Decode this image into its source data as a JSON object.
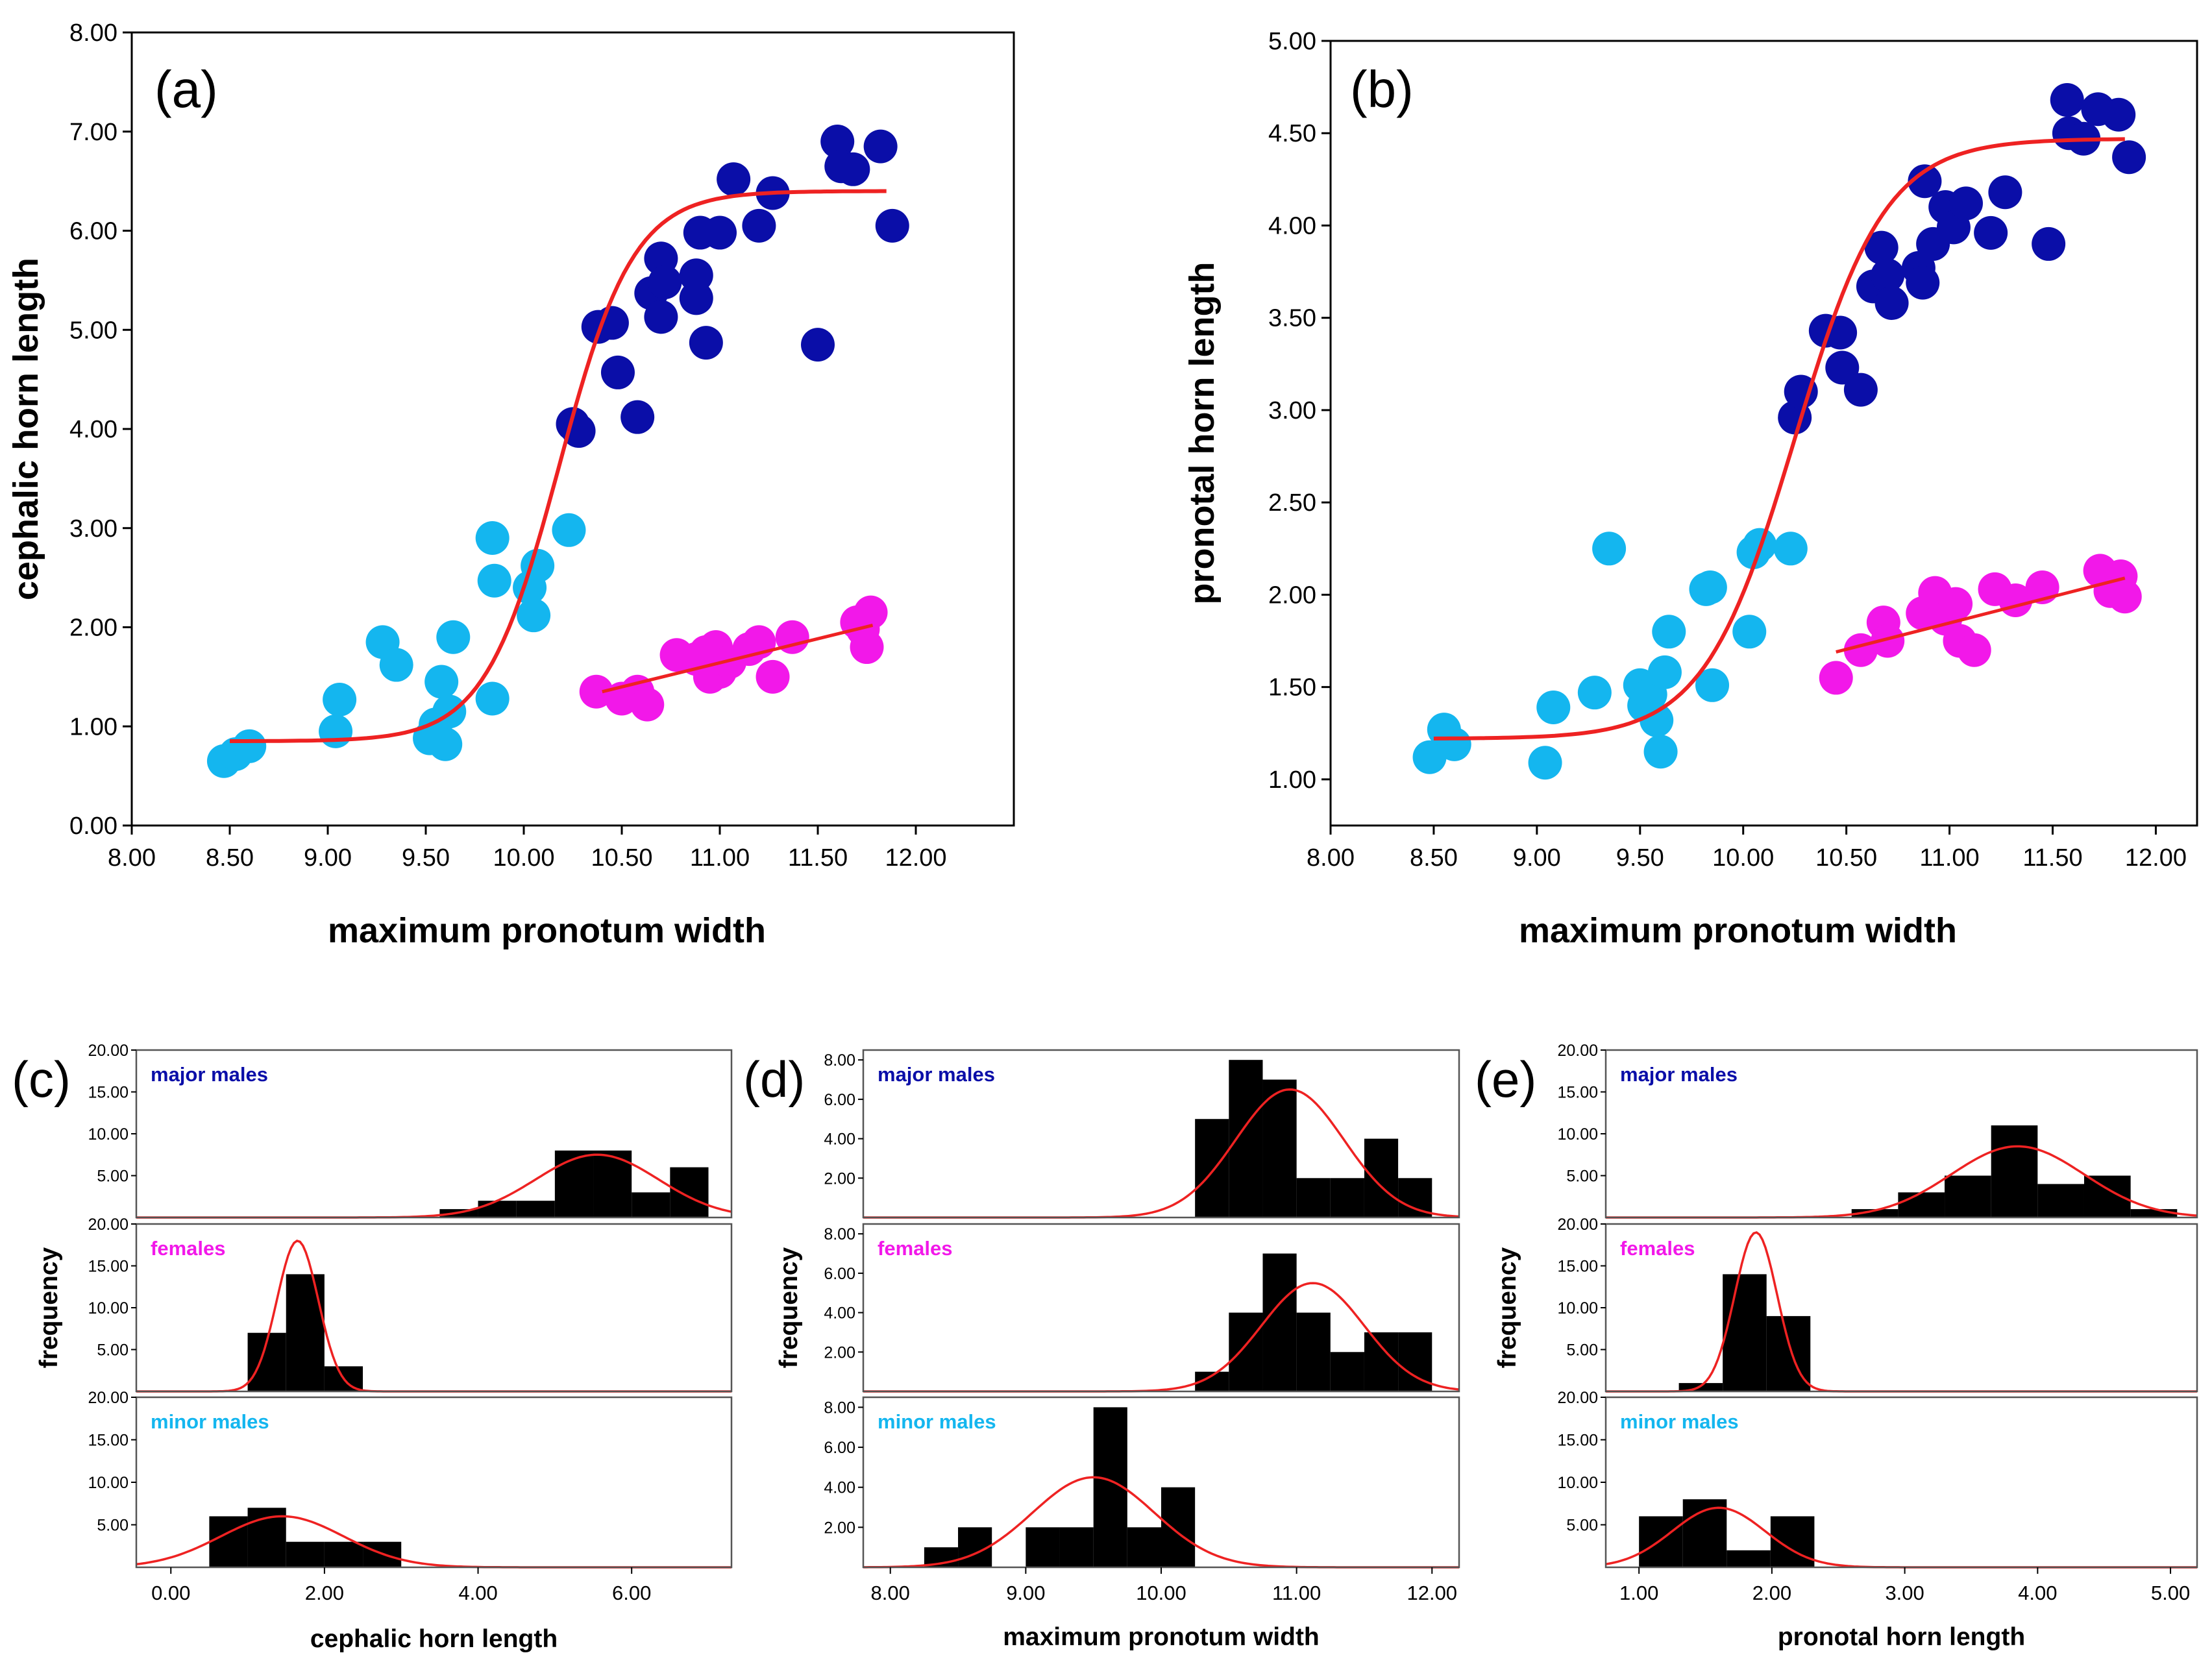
{
  "colors": {
    "major": "#0a0ea8",
    "female": "#f218e9",
    "minor": "#14b6ef",
    "curve": "#ee2222",
    "bar": "#000000",
    "axis": "#000000"
  },
  "chart_data": [
    {
      "id": "a",
      "type": "scatter",
      "panel_label": "(a)",
      "xlabel": "maximum pronotum width",
      "ylabel": "cephalic horn length",
      "xlim": [
        8.0,
        12.5
      ],
      "ylim": [
        0.0,
        8.0
      ],
      "xticks": [
        "8.00",
        "8.50",
        "9.00",
        "9.50",
        "10.00",
        "10.50",
        "11.00",
        "11.50",
        "12.00"
      ],
      "yticks": [
        "0.00",
        "1.00",
        "2.00",
        "3.00",
        "4.00",
        "5.00",
        "6.00",
        "7.00",
        "8.00"
      ],
      "series": [
        {
          "name": "minor males",
          "color_key": "minor",
          "points": [
            [
              8.47,
              0.65
            ],
            [
              8.53,
              0.72
            ],
            [
              8.6,
              0.8
            ],
            [
              9.04,
              0.95
            ],
            [
              9.06,
              1.27
            ],
            [
              9.28,
              1.85
            ],
            [
              9.35,
              1.62
            ],
            [
              9.52,
              0.88
            ],
            [
              9.55,
              1.02
            ],
            [
              9.58,
              1.45
            ],
            [
              9.6,
              0.82
            ],
            [
              9.62,
              1.15
            ],
            [
              9.64,
              1.9
            ],
            [
              9.84,
              1.28
            ],
            [
              9.84,
              2.9
            ],
            [
              9.85,
              2.47
            ],
            [
              10.03,
              2.4
            ],
            [
              10.05,
              2.12
            ],
            [
              10.07,
              2.62
            ],
            [
              10.23,
              2.98
            ]
          ]
        },
        {
          "name": "major males",
          "color_key": "major",
          "points": [
            [
              10.25,
              4.05
            ],
            [
              10.28,
              3.98
            ],
            [
              10.38,
              5.03
            ],
            [
              10.45,
              5.07
            ],
            [
              10.48,
              4.57
            ],
            [
              10.58,
              4.12
            ],
            [
              10.65,
              5.37
            ],
            [
              10.7,
              5.72
            ],
            [
              10.7,
              5.13
            ],
            [
              10.72,
              5.48
            ],
            [
              10.88,
              5.32
            ],
            [
              10.88,
              5.55
            ],
            [
              10.9,
              5.98
            ],
            [
              10.93,
              4.87
            ],
            [
              11.0,
              5.98
            ],
            [
              11.07,
              6.52
            ],
            [
              11.2,
              6.05
            ],
            [
              11.27,
              6.38
            ],
            [
              11.5,
              4.85
            ],
            [
              11.6,
              6.9
            ],
            [
              11.62,
              6.65
            ],
            [
              11.68,
              6.62
            ],
            [
              11.82,
              6.85
            ],
            [
              11.88,
              6.05
            ]
          ]
        },
        {
          "name": "females",
          "color_key": "female",
          "points": [
            [
              10.37,
              1.35
            ],
            [
              10.5,
              1.28
            ],
            [
              10.58,
              1.35
            ],
            [
              10.63,
              1.22
            ],
            [
              10.78,
              1.72
            ],
            [
              10.88,
              1.68
            ],
            [
              10.93,
              1.75
            ],
            [
              10.95,
              1.5
            ],
            [
              10.98,
              1.8
            ],
            [
              11.0,
              1.55
            ],
            [
              11.05,
              1.65
            ],
            [
              11.15,
              1.78
            ],
            [
              11.2,
              1.85
            ],
            [
              11.27,
              1.5
            ],
            [
              11.37,
              1.9
            ],
            [
              11.7,
              2.05
            ],
            [
              11.73,
              1.98
            ],
            [
              11.75,
              1.8
            ],
            [
              11.77,
              2.15
            ]
          ]
        }
      ],
      "fit_sigmoid": [
        0.85,
        5.55,
        10.18,
        0.19,
        8.5,
        11.85
      ],
      "fit_female": [
        [
          10.4,
          1.35
        ],
        [
          11.78,
          2.02
        ]
      ]
    },
    {
      "id": "b",
      "type": "scatter",
      "panel_label": "(b)",
      "xlabel": "maximum pronotum width",
      "ylabel": "pronotal horn length",
      "xlim": [
        8.0,
        12.2
      ],
      "ylim": [
        0.75,
        5.0
      ],
      "xticks": [
        "8.00",
        "8.50",
        "9.00",
        "9.50",
        "10.00",
        "10.50",
        "11.00",
        "11.50",
        "12.00"
      ],
      "yticks": [
        "1.00",
        "1.50",
        "2.00",
        "2.50",
        "3.00",
        "3.50",
        "4.00",
        "4.50",
        "5.00"
      ],
      "series": [
        {
          "name": "minor males",
          "color_key": "minor",
          "points": [
            [
              8.48,
              1.12
            ],
            [
              8.55,
              1.27
            ],
            [
              8.6,
              1.19
            ],
            [
              9.04,
              1.09
            ],
            [
              9.08,
              1.39
            ],
            [
              9.28,
              1.47
            ],
            [
              9.35,
              2.25
            ],
            [
              9.5,
              1.51
            ],
            [
              9.52,
              1.4
            ],
            [
              9.55,
              1.46
            ],
            [
              9.58,
              1.32
            ],
            [
              9.6,
              1.15
            ],
            [
              9.62,
              1.58
            ],
            [
              9.64,
              1.8
            ],
            [
              9.82,
              2.03
            ],
            [
              9.85,
              1.51
            ],
            [
              9.84,
              2.04
            ],
            [
              10.03,
              1.8
            ],
            [
              10.05,
              2.23
            ],
            [
              10.08,
              2.27
            ],
            [
              10.23,
              2.25
            ]
          ]
        },
        {
          "name": "major males",
          "color_key": "major",
          "points": [
            [
              10.25,
              2.96
            ],
            [
              10.28,
              3.1
            ],
            [
              10.4,
              3.43
            ],
            [
              10.47,
              3.42
            ],
            [
              10.48,
              3.23
            ],
            [
              10.57,
              3.11
            ],
            [
              10.63,
              3.67
            ],
            [
              10.67,
              3.88
            ],
            [
              10.7,
              3.73
            ],
            [
              10.72,
              3.58
            ],
            [
              10.85,
              3.77
            ],
            [
              10.87,
              3.69
            ],
            [
              10.88,
              4.24
            ],
            [
              10.92,
              3.9
            ],
            [
              10.98,
              4.1
            ],
            [
              11.02,
              3.99
            ],
            [
              11.08,
              4.12
            ],
            [
              11.2,
              3.96
            ],
            [
              11.27,
              4.18
            ],
            [
              11.48,
              3.9
            ],
            [
              11.57,
              4.68
            ],
            [
              11.58,
              4.5
            ],
            [
              11.65,
              4.47
            ],
            [
              11.72,
              4.63
            ],
            [
              11.82,
              4.6
            ],
            [
              11.87,
              4.37
            ]
          ]
        },
        {
          "name": "females",
          "color_key": "female",
          "points": [
            [
              10.45,
              1.55
            ],
            [
              10.57,
              1.7
            ],
            [
              10.68,
              1.85
            ],
            [
              10.7,
              1.75
            ],
            [
              10.87,
              1.9
            ],
            [
              10.93,
              2.01
            ],
            [
              10.98,
              1.87
            ],
            [
              11.03,
              1.95
            ],
            [
              11.05,
              1.75
            ],
            [
              11.12,
              1.7
            ],
            [
              11.22,
              2.03
            ],
            [
              11.32,
              1.97
            ],
            [
              11.45,
              2.04
            ],
            [
              11.73,
              2.13
            ],
            [
              11.78,
              2.02
            ],
            [
              11.83,
              2.1
            ],
            [
              11.85,
              1.99
            ]
          ]
        }
      ],
      "fit_sigmoid": [
        1.22,
        3.25,
        10.25,
        0.22,
        8.5,
        11.85
      ],
      "fit_female": [
        [
          10.45,
          1.69
        ],
        [
          11.85,
          2.09
        ]
      ]
    },
    {
      "id": "c",
      "type": "bar",
      "panel_label": "(c)",
      "xlabel": "cephalic horn length",
      "ylabel": "frequency",
      "xlim": [
        -0.45,
        7.3
      ],
      "xticks": [
        "0.00",
        "2.00",
        "4.00",
        "6.00"
      ],
      "panels": [
        {
          "name": "major males",
          "color_key": "major",
          "ylim": [
            0,
            20
          ],
          "yticks": [
            "5.00",
            "10.00",
            "15.00",
            "20.00"
          ],
          "bin_start": 3.5,
          "bin_width": 0.5,
          "counts": [
            1,
            2,
            2,
            8,
            8,
            3,
            6
          ],
          "normal": [
            5.55,
            0.8,
            7.5
          ]
        },
        {
          "name": "females",
          "color_key": "female",
          "ylim": [
            0,
            20
          ],
          "yticks": [
            "5.00",
            "10.00",
            "15.00",
            "20.00"
          ],
          "bin_start": 1.0,
          "bin_width": 0.5,
          "counts": [
            7,
            14,
            3
          ],
          "normal": [
            1.65,
            0.27,
            18.0
          ]
        },
        {
          "name": "minor males",
          "color_key": "minor",
          "ylim": [
            0,
            20
          ],
          "yticks": [
            "5.00",
            "10.00",
            "15.00",
            "20.00"
          ],
          "bin_start": 0.5,
          "bin_width": 0.5,
          "counts": [
            6,
            7,
            3,
            3,
            3
          ],
          "normal": [
            1.45,
            0.8,
            6.0
          ]
        }
      ]
    },
    {
      "id": "d",
      "type": "bar",
      "panel_label": "(d)",
      "xlabel": "maximum pronotum width",
      "ylabel": "frequency",
      "xlim": [
        7.8,
        12.2
      ],
      "xticks": [
        "8.00",
        "9.00",
        "10.00",
        "11.00",
        "12.00"
      ],
      "panels": [
        {
          "name": "major males",
          "color_key": "major",
          "ylim": [
            0,
            8.5
          ],
          "yticks": [
            "2.00",
            "4.00",
            "6.00",
            "8.00"
          ],
          "bin_start": 10.25,
          "bin_width": 0.25,
          "counts": [
            5,
            8,
            7,
            2,
            2,
            4,
            2
          ],
          "normal": [
            10.95,
            0.4,
            6.5
          ]
        },
        {
          "name": "females",
          "color_key": "female",
          "ylim": [
            0,
            8.5
          ],
          "yticks": [
            "2.00",
            "4.00",
            "6.00",
            "8.00"
          ],
          "bin_start": 10.25,
          "bin_width": 0.25,
          "counts": [
            1,
            4,
            7,
            4,
            2,
            3,
            3
          ],
          "normal": [
            11.12,
            0.38,
            5.5
          ]
        },
        {
          "name": "minor males",
          "color_key": "minor",
          "ylim": [
            0,
            8.5
          ],
          "yticks": [
            "2.00",
            "4.00",
            "6.00",
            "8.00"
          ],
          "bin_start": 8.25,
          "bin_width": 0.25,
          "counts": [
            1,
            2,
            0,
            2,
            2,
            8,
            2,
            4
          ],
          "normal": [
            9.5,
            0.45,
            4.5
          ]
        }
      ]
    },
    {
      "id": "e",
      "type": "bar",
      "panel_label": "(e)",
      "xlabel": "pronotal horn length",
      "ylabel": "frequency",
      "xlim": [
        0.75,
        5.2
      ],
      "xticks": [
        "1.00",
        "2.00",
        "3.00",
        "4.00",
        "5.00"
      ],
      "panels": [
        {
          "name": "major males",
          "color_key": "major",
          "ylim": [
            0,
            20
          ],
          "yticks": [
            "5.00",
            "10.00",
            "15.00",
            "20.00"
          ],
          "bin_start": 2.6,
          "bin_width": 0.35,
          "counts": [
            1,
            3,
            5,
            11,
            4,
            5,
            1
          ],
          "normal": [
            3.85,
            0.5,
            8.5
          ]
        },
        {
          "name": "females",
          "color_key": "female",
          "ylim": [
            0,
            20
          ],
          "yticks": [
            "5.00",
            "10.00",
            "15.00",
            "20.00"
          ],
          "bin_start": 1.3,
          "bin_width": 0.33,
          "counts": [
            1,
            14,
            9
          ],
          "normal": [
            1.88,
            0.16,
            19.0
          ]
        },
        {
          "name": "minor males",
          "color_key": "minor",
          "ylim": [
            0,
            20
          ],
          "yticks": [
            "5.00",
            "10.00",
            "15.00",
            "20.00"
          ],
          "bin_start": 1.0,
          "bin_width": 0.33,
          "counts": [
            6,
            8,
            2,
            6
          ],
          "normal": [
            1.6,
            0.35,
            7.0
          ]
        }
      ]
    }
  ]
}
